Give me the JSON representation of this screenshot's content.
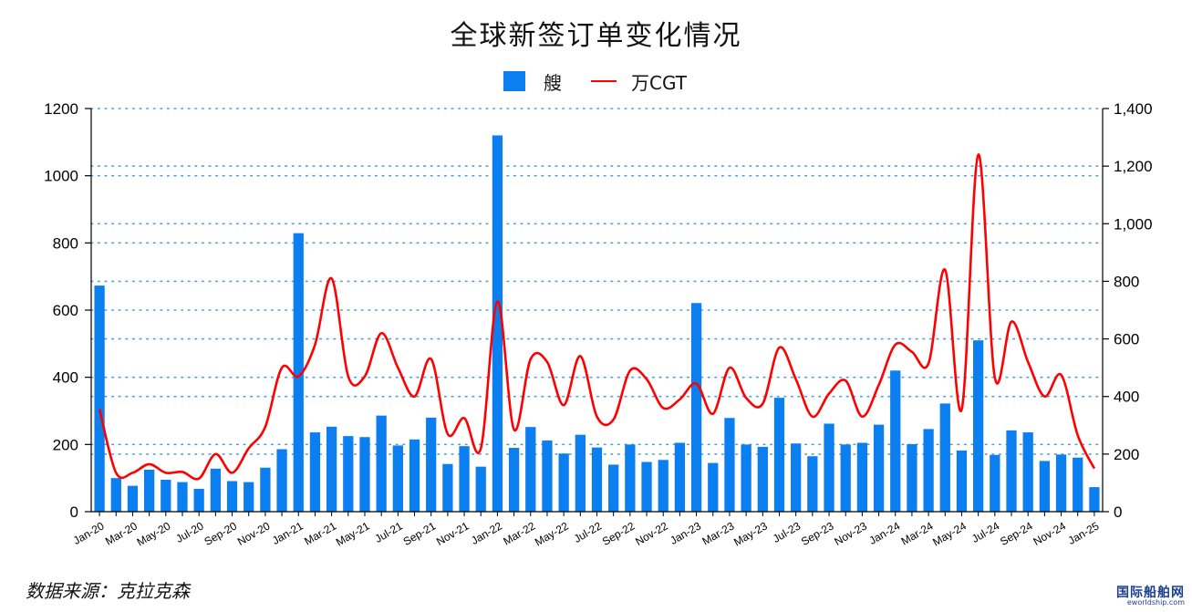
{
  "chart_data": {
    "type": "bar",
    "title": "全球新签订单变化情况",
    "legend": {
      "position": "top-center",
      "bar_label": "艘",
      "line_label": "万CGT"
    },
    "source_text": "数据来源：克拉克森",
    "watermark": {
      "cn": "国际船舶网",
      "en": "eworldship.com"
    },
    "colors": {
      "bar": "#0b7ef0",
      "line": "#ff0000",
      "grid": "#4aa3df",
      "axis": "#000000"
    },
    "grid": {
      "horizontal": true,
      "style": "dotted"
    },
    "left_axis": {
      "ylim": [
        0,
        1200
      ],
      "ticks": [
        "0",
        "200",
        "400",
        "600",
        "800",
        "1000",
        "1200"
      ]
    },
    "right_axis": {
      "ylim": [
        0,
        1400
      ],
      "ticks": [
        "0",
        "200",
        "400",
        "600",
        "800",
        "1,000",
        "1,200",
        "1,400"
      ]
    },
    "x_tick_labels": [
      "Jan-20",
      "Mar-20",
      "May-20",
      "Jul-20",
      "Sep-20",
      "Nov-20",
      "Jan-21",
      "Mar-21",
      "May-21",
      "Jul-21",
      "Sep-21",
      "Nov-21",
      "Jan-22",
      "Mar-22",
      "May-22",
      "Jul-22",
      "Sep-22",
      "Nov-22",
      "Jan-23",
      "Mar-23",
      "May-23",
      "Jul-23",
      "Sep-23",
      "Nov-23",
      "Jan-24",
      "Mar-24",
      "May-24",
      "Jul-24",
      "Sep-24",
      "Nov-24",
      "Jan-25"
    ],
    "series": [
      {
        "name": "艘",
        "type": "bar",
        "axis": "left",
        "values": [
          673,
          100,
          77,
          125,
          95,
          88,
          68,
          128,
          91,
          88,
          131,
          186,
          829,
          236,
          253,
          225,
          222,
          286,
          197,
          215,
          280,
          142,
          195,
          134,
          1120,
          190,
          252,
          212,
          173,
          229,
          191,
          140,
          200,
          148,
          154,
          205,
          621,
          145,
          279,
          200,
          193,
          339,
          203,
          165,
          262,
          200,
          205,
          259,
          420,
          201,
          246,
          322,
          182,
          510,
          169,
          242,
          236,
          151,
          170,
          161,
          73
        ]
      },
      {
        "name": "万CGT",
        "type": "line",
        "axis": "right",
        "values": [
          356,
          135,
          135,
          165,
          135,
          138,
          115,
          200,
          135,
          220,
          295,
          500,
          470,
          580,
          810,
          470,
          470,
          620,
          500,
          400,
          530,
          270,
          325,
          220,
          730,
          285,
          530,
          520,
          370,
          540,
          330,
          320,
          490,
          460,
          360,
          390,
          445,
          340,
          500,
          395,
          375,
          570,
          460,
          330,
          410,
          455,
          330,
          440,
          580,
          555,
          515,
          840,
          355,
          1240,
          465,
          660,
          520,
          400,
          475,
          265,
          150
        ]
      }
    ]
  }
}
